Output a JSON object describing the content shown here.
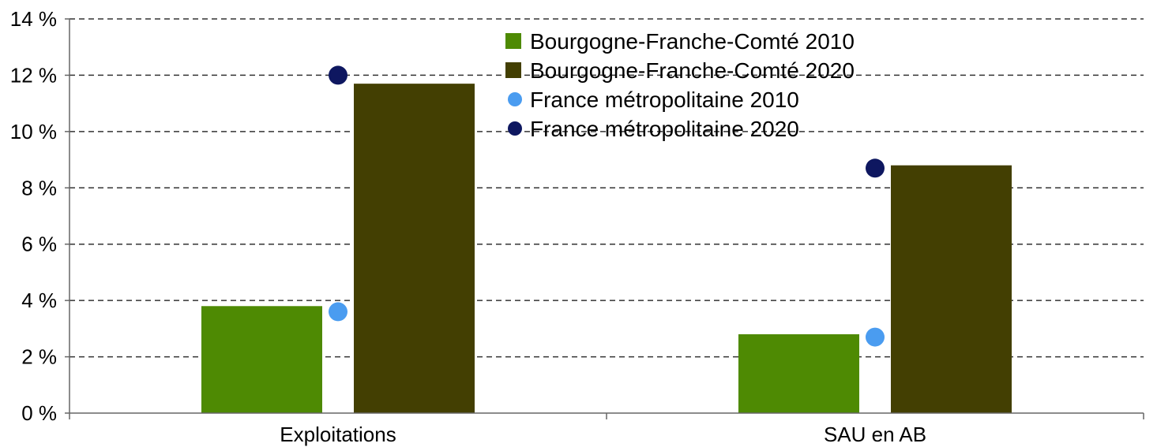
{
  "chart_data": {
    "type": "bar",
    "categories": [
      "Exploitations",
      "SAU en AB"
    ],
    "series": [
      {
        "name": "Bourgogne-Franche-Comté 2010",
        "kind": "bar",
        "color": "#4e8a03",
        "values": [
          3.8,
          2.8
        ]
      },
      {
        "name": "Bourgogne-Franche-Comté 2020",
        "kind": "bar",
        "color": "#433f02",
        "values": [
          11.7,
          8.8
        ]
      },
      {
        "name": "France métropolitaine 2010",
        "kind": "marker",
        "color": "#4a9cf0",
        "values": [
          3.6,
          2.7
        ]
      },
      {
        "name": "France métropolitaine 2020",
        "kind": "marker",
        "color": "#0e1760",
        "values": [
          12.0,
          8.7
        ]
      }
    ],
    "ylim": [
      0,
      14
    ],
    "y_ticks": [
      "0 %",
      "2 %",
      "4 %",
      "6 %",
      "8 %",
      "10 %",
      "12 %",
      "14 %"
    ],
    "y_tick_values": [
      0,
      2,
      4,
      6,
      8,
      10,
      12,
      14
    ],
    "grid": true,
    "legend_position": "top-right"
  }
}
